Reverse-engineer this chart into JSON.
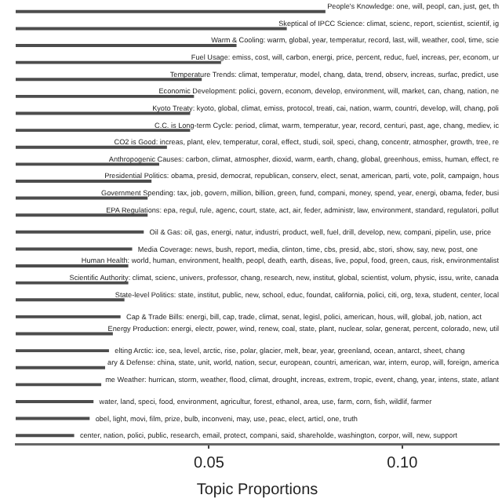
{
  "chart_data": {
    "type": "bar",
    "orientation": "horizontal",
    "xlabel": "Topic Proportions",
    "tick_labels": "x",
    "color": "#4d4d4d",
    "xlim": [
      0,
      0.125
    ],
    "xticks": [
      0.05,
      {
        "value": 0.1,
        "label": "0.10"
      }
    ],
    "categories": [
      "People's Knowledge: one, will, peopl, can, just, get, th",
      "Skeptical of IPCC Science: climat, scienc, report, scientist, scientif, ig",
      "Warm & Cooling: warm, global, year, temperatur, record, last, will, weather, cool, time, scie",
      "Fuel Usage: emiss, cost, will, carbon, energi, price, percent, reduc, fuel, increas, per, econom, ur",
      "Temperature Trends: climat, temperatur, model, chang, data, trend, observ, increas, surfac, predict, use",
      "Economic Development: polici, govern, econom, develop, environment, will, market, can, chang, nation, ne",
      "Kyoto Treaty: kyoto, global, climat, emiss, protocol, treati, cai, nation, warm, countri, develop, will, chang, poli",
      "C.C. is Long-term Cycle: period, climat, warm, temperatur, year, record, centuri, past, age, chang, mediev, ic",
      "CO2 is Good: increas, plant, elev, temperatur, coral, effect, studi, soil, speci, chang, concentr, atmospher, growth, tree, re",
      "Anthropogenic Causes: carbon, climat, atmospher, dioxid, warm, earth, chang, global, greenhous, emiss, human, effect, re",
      "Presidential Politics: obama, presid, democrat, republican, conserv, elect, senat, american, parti, vote, polit, campaign, hous",
      "Government Spending: tax, job, govern, million, billion, green, fund, compani, money, spend, year, energi, obama, feder, busi",
      "EPA Regulations: epa, regul, rule, agenc, court, state, act, air, feder, administr, law, environment, standard, regulatori, pollut",
      "Oil & Gas: oil, gas, energi, natur, industri, product, well, fuel, drill, develop, new, compani, pipelin, use, price",
      "Media Coverage: news, bush, report, media, clinton, time, cbs, presid, abc, stori, show, say, new, post, one",
      "Human Health: world, human, environment, health, peopl, death, earth, diseas, live, popul, food, green, caus, risk, environmentalist",
      "Scientific Authority: climat, scienc, univers, professor, chang, research, new, institut, global, scientist, volum, physic, issu, write, canada",
      "State-level Politics: state, institut, public, new, school, educ, foundat, california, polici, citi, org, texa, student, center, local",
      "Cap & Trade Bills: energi, bill, cap, trade, climat, senat, legisl, polici, american, hous, will, global, job, nation, act",
      "Energy Production: energi, electr, power, wind, renew, coal, state, plant, nuclear, solar, generat, percent, colorado, new, util",
      "elting Arctic: ice, sea, level, arctic, rise, polar, glacier, melt, bear, year, greenland, ocean, antarct, sheet, chang",
      "ary & Defense: china, state, unit, world, nation, secur, european, countri, american, war, intern, europ, will, foreign, america",
      "me Weather: hurrican, storm, weather, flood, climat, drought, increas, extrem, tropic, event, chang, year, intens, state, atlant",
      "water, land, speci, food, environment, agricultur, forest, ethanol, area, use, farm, corn, fish, wildlif, farmer",
      "obel, light, movi, film, prize, bulb, inconveni, may, use, peac, elect, articl, one, truth",
      "center, nation, polici, public, research, email, protect, compani, said, shareholde, washington, corpor, will, new, support"
    ],
    "values": [
      0.08,
      0.07,
      0.057,
      0.053,
      0.048,
      0.046,
      0.045,
      0.045,
      0.039,
      0.037,
      0.035,
      0.034,
      0.034,
      0.033,
      0.03,
      0.029,
      0.029,
      0.028,
      0.027,
      0.025,
      0.024,
      0.023,
      0.022,
      0.02,
      0.019,
      0.015
    ]
  }
}
